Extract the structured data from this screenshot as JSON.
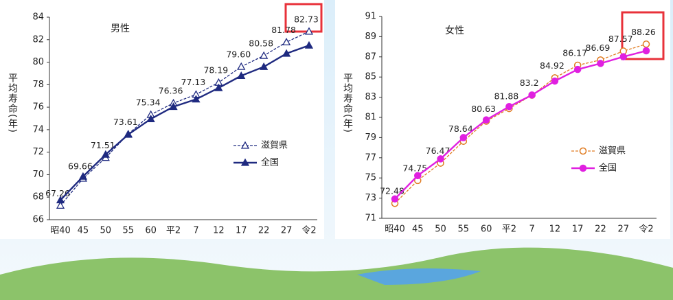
{
  "chart_data": [
    {
      "type": "line",
      "title": "男性",
      "y_label": "平均寿命(年)",
      "categories": [
        "昭40",
        "45",
        "50",
        "55",
        "60",
        "平2",
        "7",
        "12",
        "17",
        "22",
        "27",
        "令2"
      ],
      "ylim": [
        66,
        84
      ],
      "yticks": [
        66,
        68,
        70,
        72,
        74,
        76,
        78,
        80,
        82,
        84
      ],
      "series": [
        {
          "name": "滋賀県",
          "color": "#1f2a80",
          "marker": "triangle",
          "marker_filled": false,
          "line_style": "dashed",
          "values": [
            67.26,
            69.66,
            71.51,
            73.61,
            75.34,
            76.36,
            77.13,
            78.19,
            79.6,
            80.58,
            81.78,
            82.73
          ],
          "value_labels": [
            "67.26",
            "69.66",
            "71.51",
            "73.61",
            "75.34",
            "76.36",
            "77.13",
            "78.19",
            "79.60",
            "80.58",
            "81.78",
            "82.73"
          ]
        },
        {
          "name": "全国",
          "color": "#1f2a80",
          "marker": "triangle",
          "marker_filled": true,
          "line_style": "solid",
          "values": [
            67.74,
            69.84,
            71.79,
            73.57,
            74.95,
            76.04,
            76.7,
            77.71,
            78.79,
            79.59,
            80.77,
            81.49
          ]
        }
      ]
    },
    {
      "type": "line",
      "title": "女性",
      "y_label": "平均寿命(年)",
      "categories": [
        "昭40",
        "45",
        "50",
        "55",
        "60",
        "平2",
        "7",
        "12",
        "17",
        "22",
        "27",
        "令2"
      ],
      "ylim": [
        71,
        91
      ],
      "yticks": [
        71,
        73,
        75,
        77,
        79,
        81,
        83,
        85,
        87,
        89,
        91
      ],
      "series": [
        {
          "name": "滋賀県",
          "color": "#e07b20",
          "marker": "circle",
          "marker_filled": false,
          "line_style": "dashed",
          "values": [
            72.48,
            74.75,
            76.47,
            78.64,
            80.63,
            81.88,
            83.2,
            84.92,
            86.17,
            86.69,
            87.57,
            88.26
          ],
          "value_labels": [
            "72.48",
            "74.75",
            "76.47",
            "78.64",
            "80.63",
            "81.88",
            "83.2",
            "84.92",
            "86.17",
            "86.69",
            "87.57",
            "88.26"
          ]
        },
        {
          "name": "全国",
          "color": "#e020e0",
          "marker": "circle",
          "marker_filled": true,
          "line_style": "solid",
          "values": [
            72.92,
            75.23,
            76.89,
            79.0,
            80.75,
            82.07,
            83.22,
            84.6,
            85.75,
            86.35,
            87.01,
            87.6
          ]
        }
      ]
    }
  ]
}
